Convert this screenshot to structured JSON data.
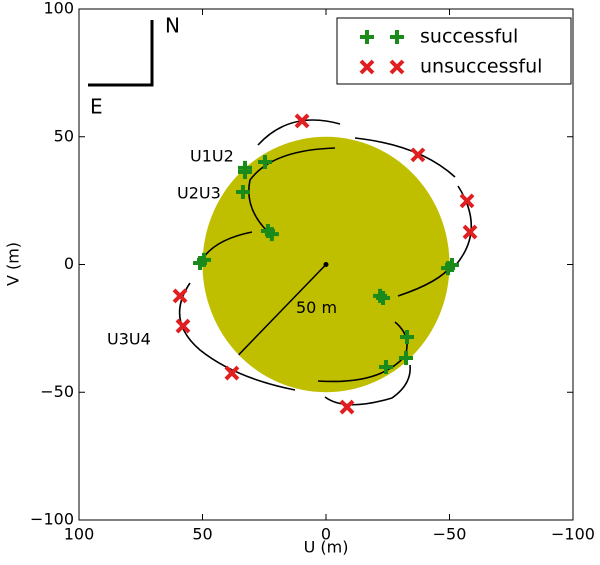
{
  "chart_data": {
    "type": "scatter",
    "xlabel": "U (m)",
    "ylabel": "V (m)",
    "xlim": [
      100,
      -100
    ],
    "ylim": [
      -100,
      100
    ],
    "xticks": [
      100,
      50,
      0,
      {
        "value": -50,
        "label": "−50"
      },
      {
        "value": -100,
        "label": "−100"
      }
    ],
    "yticks": [
      {
        "value": -100,
        "label": "−100"
      },
      {
        "value": -50,
        "label": "−50"
      },
      0,
      50,
      100
    ],
    "legend_position": "upper right",
    "series": [
      {
        "name": "successful",
        "color": "#1a8a1a",
        "marker": "plus",
        "x": [
          24.7,
          32.8,
          32.8,
          33.6,
          23.5,
          21.9,
          51.0,
          49.4,
          -21.9,
          -23.1,
          -32.8,
          -32.4,
          -24.3,
          -49.4,
          -51.0
        ],
        "y": [
          40.1,
          37.8,
          36.2,
          28.4,
          13.1,
          11.9,
          0.6,
          1.8,
          -12.3,
          -13.1,
          -28.4,
          -36.6,
          -40.1,
          -1.4,
          -0.2
        ]
      },
      {
        "name": "unsuccessful",
        "color": "#e02020",
        "marker": "cross",
        "x": [
          9.7,
          -37.2,
          -57.1,
          -58.3,
          59.1,
          57.9,
          38.1,
          -8.5
        ],
        "y": [
          56.2,
          42.9,
          24.9,
          12.7,
          -12.3,
          -24.1,
          -42.5,
          -55.8
        ]
      }
    ],
    "disc": {
      "radius": 50,
      "label": "50 m",
      "color": "#bfbf00"
    },
    "baseline_labels": [
      "U1U2",
      "U2U3",
      "U3U4"
    ],
    "compass": [
      "N",
      "E"
    ]
  }
}
